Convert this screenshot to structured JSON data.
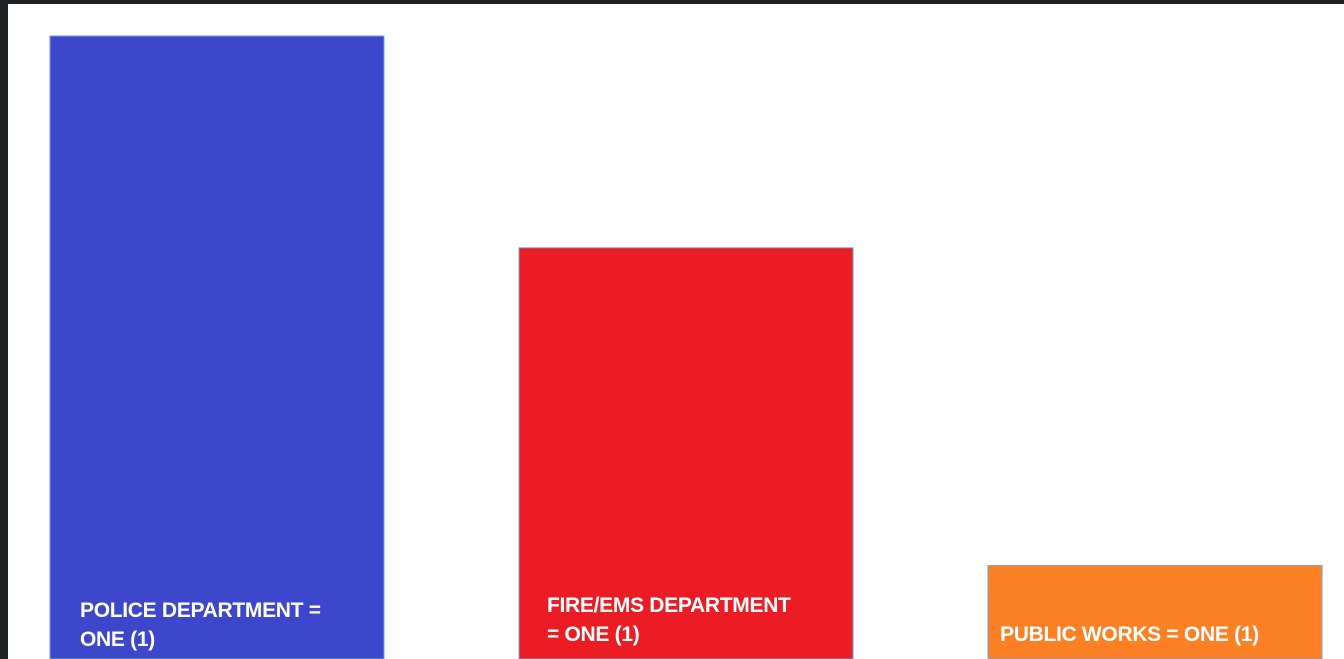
{
  "chart_data": {
    "type": "bar",
    "categories": [
      "POLICE DEPARTMENT = ONE (1)",
      "FIRE/EMS DEPARTMENT = ONE (1)",
      "PUBLIC WORKS = ONE (1)"
    ],
    "labels": [
      {
        "line1": "POLICE DEPARTMENT =",
        "line2": "ONE (1)"
      },
      {
        "line1": "FIRE/EMS DEPARTMENT",
        "line2": "= ONE (1)"
      },
      {
        "line1": "PUBLIC WORKS = ONE (1)",
        "line2": ""
      }
    ],
    "values": [
      100,
      66,
      15
    ],
    "colors": [
      "#3d47cb",
      "#eb1c24",
      "#fd8025"
    ],
    "ylim": [
      0,
      100
    ],
    "grid": false,
    "title": "",
    "xlabel": "",
    "ylabel": ""
  }
}
